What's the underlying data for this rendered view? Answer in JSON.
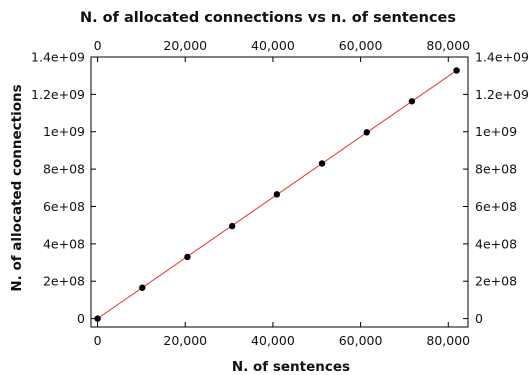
{
  "chart_data": {
    "type": "scatter",
    "title": "N. of allocated connections vs n. of sentences",
    "xlabel": "N. of sentences",
    "ylabel": "N. of allocated connections",
    "xlim": [
      -1500,
      84500
    ],
    "ylim": [
      -45000000,
      1400000000
    ],
    "x_ticks": [
      0,
      20000,
      40000,
      60000,
      80000
    ],
    "x_tick_labels": [
      "0",
      "20,000",
      "40,000",
      "60,000",
      "80,000"
    ],
    "y_ticks": [
      0,
      200000000,
      400000000,
      600000000,
      800000000,
      1000000000,
      1200000000,
      1400000000
    ],
    "y_tick_labels": [
      "0",
      "2e+08",
      "4e+08",
      "6e+08",
      "8e+08",
      "1e+09",
      "1.2e+09",
      "1.4e+09"
    ],
    "mirror_axes": true,
    "grid": false,
    "series": [
      {
        "type": "scatter",
        "color": "#000000",
        "x": [
          0,
          10200,
          20500,
          30700,
          40900,
          51200,
          61400,
          71700,
          81900
        ],
        "y": [
          0,
          165000000,
          330000000,
          495000000,
          665000000,
          830000000,
          997000000,
          1163000000,
          1328000000
        ]
      },
      {
        "type": "line",
        "color": "#e8352a",
        "x": [
          0,
          81900
        ],
        "y": [
          0,
          1328000000
        ]
      }
    ]
  }
}
